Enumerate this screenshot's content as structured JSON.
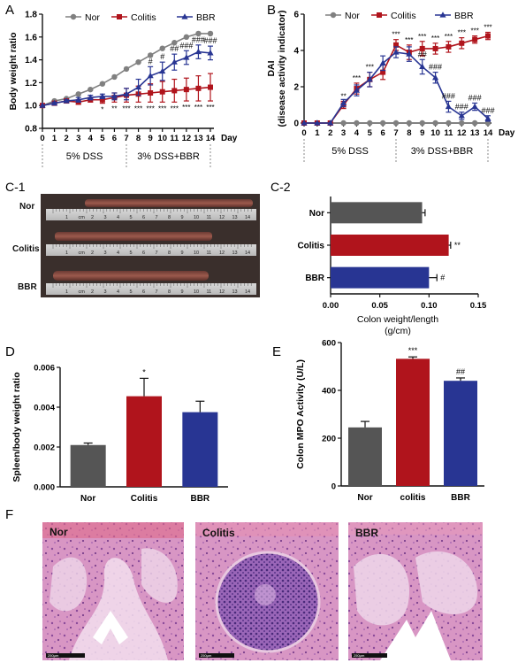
{
  "figure": {
    "panel_labels": {
      "A": "A",
      "B": "B",
      "C1": "C-1",
      "C2": "C-2",
      "D": "D",
      "E": "E",
      "F": "F"
    },
    "treatment_labels": {
      "dss": "5% DSS",
      "dss_bbr": "3% DSS+BBR"
    },
    "c1_photo": {
      "rows": [
        "Nor",
        "Colitis",
        "BBR"
      ],
      "ruler_tick_labels": [
        "1",
        "cm",
        "2",
        "3",
        "4",
        "5",
        "6",
        "7",
        "8",
        "9",
        "10",
        "11",
        "12",
        "13",
        "14"
      ]
    },
    "histology": [
      {
        "label": "Nor",
        "scale": "250μm"
      },
      {
        "label": "Colitis",
        "scale": "250μm"
      },
      {
        "label": "BBR",
        "scale": "250μm"
      }
    ],
    "colors": {
      "nor": "#808080",
      "colitis": "#b0141c",
      "bbr": "#283593",
      "nor_bar": "#555555"
    }
  },
  "chart_data": [
    {
      "id": "A",
      "type": "line",
      "ylabel": "Body weight ratio",
      "xlabel": "Day",
      "ylim": [
        0.8,
        1.8
      ],
      "yticks": [
        "0.8",
        "1.0",
        "1.2",
        "1.4",
        "1.6",
        "1.8"
      ],
      "x": [
        0,
        1,
        2,
        3,
        4,
        5,
        6,
        7,
        8,
        9,
        10,
        11,
        12,
        13,
        14
      ],
      "legend_position": "top",
      "series": [
        {
          "name": "Nor",
          "color": "#808080",
          "marker": "circle",
          "values": [
            1.0,
            1.04,
            1.06,
            1.1,
            1.14,
            1.19,
            1.25,
            1.32,
            1.38,
            1.44,
            1.5,
            1.55,
            1.6,
            1.63,
            1.63
          ]
        },
        {
          "name": "Colitis",
          "color": "#b0141c",
          "marker": "square",
          "values": [
            1.0,
            1.02,
            1.04,
            1.03,
            1.05,
            1.05,
            1.07,
            1.09,
            1.1,
            1.11,
            1.12,
            1.13,
            1.14,
            1.15,
            1.16
          ],
          "errors": [
            0.0,
            0.01,
            0.01,
            0.02,
            0.02,
            0.03,
            0.04,
            0.06,
            0.07,
            0.08,
            0.09,
            0.1,
            0.1,
            0.11,
            0.12
          ]
        },
        {
          "name": "BBR",
          "color": "#283593",
          "marker": "triangle",
          "values": [
            1.0,
            1.02,
            1.04,
            1.05,
            1.07,
            1.08,
            1.08,
            1.1,
            1.16,
            1.26,
            1.3,
            1.38,
            1.42,
            1.47,
            1.46
          ],
          "errors": [
            0.0,
            0.01,
            0.01,
            0.02,
            0.02,
            0.02,
            0.03,
            0.05,
            0.07,
            0.08,
            0.08,
            0.07,
            0.06,
            0.06,
            0.06
          ]
        }
      ],
      "annotations_below": [
        {
          "x": 5,
          "text": "*"
        },
        {
          "x": 6,
          "text": "**"
        },
        {
          "x": 7,
          "text": "***"
        },
        {
          "x": 8,
          "text": "***"
        },
        {
          "x": 9,
          "text": "***"
        },
        {
          "x": 10,
          "text": "***"
        },
        {
          "x": 11,
          "text": "***"
        },
        {
          "x": 12,
          "text": "***"
        },
        {
          "x": 13,
          "text": "***"
        },
        {
          "x": 14,
          "text": "***"
        }
      ],
      "annotations_above": [
        {
          "x": 9,
          "text": "#"
        },
        {
          "x": 10,
          "text": "#"
        },
        {
          "x": 11,
          "text": "##"
        },
        {
          "x": 12,
          "text": "###"
        },
        {
          "x": 13,
          "text": "###"
        },
        {
          "x": 14,
          "text": "###"
        }
      ]
    },
    {
      "id": "B",
      "type": "line",
      "ylabel": "DAI",
      "ylabel2": "(disease activity indicator)",
      "xlabel": "Day",
      "ylim": [
        0,
        6
      ],
      "yticks": [
        "0",
        "2",
        "4",
        "6"
      ],
      "x": [
        0,
        1,
        2,
        3,
        4,
        5,
        6,
        7,
        8,
        9,
        10,
        11,
        12,
        13,
        14
      ],
      "legend_position": "top",
      "series": [
        {
          "name": "Nor",
          "color": "#808080",
          "marker": "circle",
          "values": [
            0,
            0,
            0,
            0,
            0,
            0,
            0,
            0,
            0,
            0,
            0,
            0,
            0,
            0,
            0
          ]
        },
        {
          "name": "Colitis",
          "color": "#b0141c",
          "marker": "square",
          "values": [
            0,
            0,
            0,
            1.0,
            1.9,
            2.4,
            2.8,
            4.3,
            3.9,
            4.1,
            4.1,
            4.2,
            4.4,
            4.6,
            4.8
          ],
          "errors": [
            0,
            0,
            0,
            0.2,
            0.3,
            0.4,
            0.4,
            0.3,
            0.4,
            0.4,
            0.3,
            0.3,
            0.3,
            0.2,
            0.2
          ]
        },
        {
          "name": "BBR",
          "color": "#283593",
          "marker": "triangle",
          "values": [
            0,
            0,
            0,
            1.1,
            1.8,
            2.4,
            3.3,
            3.9,
            3.8,
            3.1,
            2.5,
            0.9,
            0.4,
            0.9,
            0.25
          ],
          "errors": [
            0,
            0,
            0,
            0.2,
            0.3,
            0.4,
            0.4,
            0.3,
            0.4,
            0.4,
            0.3,
            0.3,
            0.2,
            0.2,
            0.15
          ]
        }
      ],
      "annotations_above": [
        {
          "x": 3,
          "text": "**"
        },
        {
          "x": 4,
          "text": "***"
        },
        {
          "x": 5,
          "text": "***"
        },
        {
          "x": 7,
          "text": "***"
        },
        {
          "x": 8,
          "text": "***"
        },
        {
          "x": 9,
          "text": "***"
        },
        {
          "x": 10,
          "text": "***"
        },
        {
          "x": 11,
          "text": "***"
        },
        {
          "x": 12,
          "text": "***"
        },
        {
          "x": 13,
          "text": "***"
        },
        {
          "x": 14,
          "text": "***"
        }
      ],
      "annotations_hash": [
        {
          "x": 9,
          "text": "##"
        },
        {
          "x": 10,
          "text": "###"
        },
        {
          "x": 11,
          "text": "###"
        },
        {
          "x": 12,
          "text": "###"
        },
        {
          "x": 13,
          "text": "###"
        },
        {
          "x": 14,
          "text": "###"
        }
      ]
    },
    {
      "id": "C-2",
      "type": "bar",
      "orientation": "horizontal",
      "xlabel": "Colon weight/length",
      "xlabel2": "(g/cm)",
      "xlim": [
        0,
        0.15
      ],
      "xticks": [
        "0.00",
        "0.05",
        "0.10",
        "0.15"
      ],
      "categories": [
        "Nor",
        "Colitis",
        "BBR"
      ],
      "values": [
        0.093,
        0.12,
        0.1
      ],
      "errors": [
        0.003,
        0.002,
        0.008
      ],
      "colors": [
        "#555555",
        "#b0141c",
        "#283593"
      ],
      "annotations": [
        "",
        "**",
        "#"
      ]
    },
    {
      "id": "D",
      "type": "bar",
      "ylabel": "Spleen/body weight ratio",
      "ylim": [
        0,
        0.006
      ],
      "yticks": [
        "0.000",
        "0.002",
        "0.004",
        "0.006"
      ],
      "categories": [
        "Nor",
        "Colitis",
        "BBR"
      ],
      "values": [
        0.0021,
        0.00455,
        0.00375
      ],
      "errors": [
        0.0001,
        0.0009,
        0.00055
      ],
      "colors": [
        "#555555",
        "#b0141c",
        "#283593"
      ],
      "annotations": [
        "",
        "*",
        ""
      ]
    },
    {
      "id": "E",
      "type": "bar",
      "ylabel": "Colon MPO Activity (U/L)",
      "ylim": [
        0,
        600
      ],
      "yticks": [
        "0",
        "200",
        "400",
        "600"
      ],
      "categories": [
        "Nor",
        "colitis",
        "BBR"
      ],
      "values": [
        245,
        532,
        440
      ],
      "errors": [
        25,
        8,
        12
      ],
      "colors": [
        "#555555",
        "#b0141c",
        "#283593"
      ],
      "annotations": [
        "",
        "***",
        "##"
      ]
    }
  ]
}
